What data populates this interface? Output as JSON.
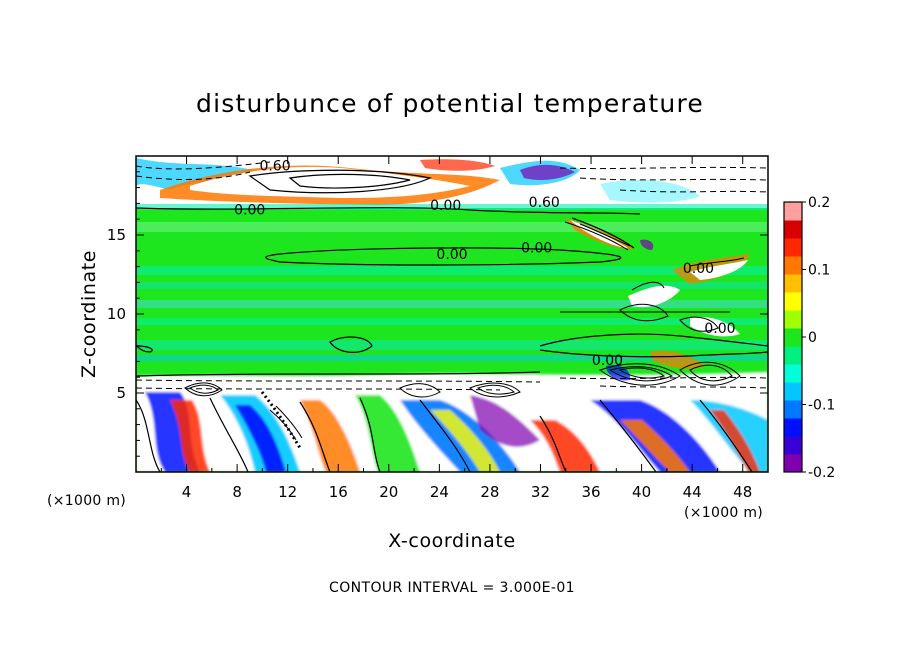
{
  "chart_data": {
    "type": "heatmap",
    "title": "disturbunce of potential temperature",
    "xlabel": "X-coordinate",
    "ylabel": "Z-coordinate",
    "x_unit": "(×1000 m)",
    "z_unit": "(×1000 m)",
    "xlim": [
      0,
      50
    ],
    "ylim": [
      0,
      20
    ],
    "x_ticks": [
      "4",
      "8",
      "12",
      "16",
      "20",
      "24",
      "28",
      "32",
      "36",
      "40",
      "44",
      "48"
    ],
    "x_tick_values": [
      4,
      8,
      12,
      16,
      20,
      24,
      28,
      32,
      36,
      40,
      44,
      48
    ],
    "y_ticks": [
      "5",
      "10",
      "15"
    ],
    "y_tick_values": [
      5,
      10,
      15
    ],
    "colorbar": {
      "range": [
        -0.2,
        0.2
      ],
      "tick_labels": [
        "0.2",
        "0.1",
        "0",
        "-0.1",
        "-0.2"
      ],
      "tick_values": [
        0.2,
        0.1,
        0,
        -0.1,
        -0.2
      ]
    },
    "contour_labels": [
      {
        "text": "0.60",
        "x": 11.0,
        "z": 19.4
      },
      {
        "text": "0.00",
        "x": 9.0,
        "z": 16.6
      },
      {
        "text": "0.00",
        "x": 24.5,
        "z": 16.9
      },
      {
        "text": "0.60",
        "x": 32.3,
        "z": 17.1
      },
      {
        "text": "0.00",
        "x": 25.0,
        "z": 13.8
      },
      {
        "text": "0.00",
        "x": 31.7,
        "z": 14.2
      },
      {
        "text": "0.00",
        "x": 37.3,
        "z": 7.1
      },
      {
        "text": "0.00",
        "x": 46.2,
        "z": 9.1
      },
      {
        "text": "0.00",
        "x": 44.5,
        "z": 12.9
      }
    ],
    "layers": [
      {
        "z_range": [
          17,
          20
        ],
        "region": "upper layer, large positive (white) anomalies with dashed negative contours"
      },
      {
        "z_range": [
          6.3,
          17
        ],
        "region": "mid layer, values near 0 (green) with light blue bands"
      },
      {
        "z_range": [
          0,
          6.3
        ],
        "region": "lower layer, strong alternating positive/negative anomalies"
      }
    ],
    "contour_interval": "CONTOUR INTERVAL = 3.000E-01",
    "grid": false,
    "legend": "colorbar-right"
  },
  "colors": {
    "scale": [
      "#7f00b0",
      "#3a00d8",
      "#0010ff",
      "#0078ff",
      "#00c8ff",
      "#00ffd8",
      "#00f080",
      "#1ee61e",
      "#a0ff00",
      "#ffff00",
      "#ffc000",
      "#ff7800",
      "#ff2800",
      "#d80000",
      "#ffa0a0"
    ],
    "zero": "#1ee61e"
  }
}
